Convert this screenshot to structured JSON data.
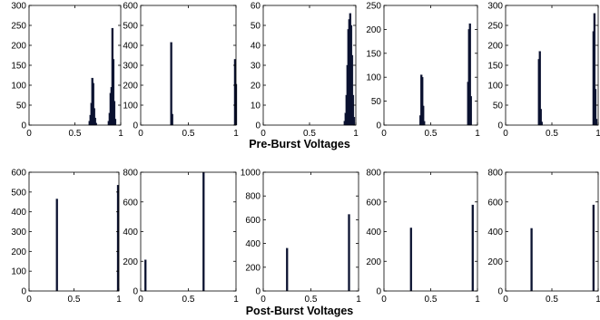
{
  "figure": {
    "row_titles": [
      "Pre-Burst Voltages",
      "Post-Burst Voltages"
    ]
  },
  "colors": {
    "bar": "#0b1230",
    "axis": "#000000",
    "background": "#ffffff"
  },
  "chart_data": [
    {
      "type": "bar",
      "panel": "pre-1",
      "row": "Pre-Burst Voltages",
      "xlim": [
        0,
        1
      ],
      "ylim": [
        0,
        300
      ],
      "xticks": [
        0,
        0.5,
        1
      ],
      "xtick_labels": [
        "0",
        "0.5",
        "1"
      ],
      "yticks": [
        0,
        50,
        100,
        150,
        200,
        250,
        300
      ],
      "ytick_labels": [
        "0",
        "50",
        "100",
        "150",
        "200",
        "250",
        "300"
      ],
      "bars": [
        {
          "x": 0.66,
          "y": 10
        },
        {
          "x": 0.67,
          "y": 25
        },
        {
          "x": 0.68,
          "y": 55
        },
        {
          "x": 0.69,
          "y": 118
        },
        {
          "x": 0.7,
          "y": 105
        },
        {
          "x": 0.71,
          "y": 42
        },
        {
          "x": 0.72,
          "y": 18
        },
        {
          "x": 0.73,
          "y": 5
        },
        {
          "x": 0.87,
          "y": 10
        },
        {
          "x": 0.88,
          "y": 30
        },
        {
          "x": 0.89,
          "y": 80
        },
        {
          "x": 0.9,
          "y": 95
        },
        {
          "x": 0.91,
          "y": 243
        },
        {
          "x": 0.92,
          "y": 165
        },
        {
          "x": 0.93,
          "y": 60
        },
        {
          "x": 0.94,
          "y": 15
        }
      ]
    },
    {
      "type": "bar",
      "panel": "pre-2",
      "row": "Pre-Burst Voltages",
      "xlim": [
        0,
        1
      ],
      "ylim": [
        0,
        600
      ],
      "xticks": [
        0,
        0.5,
        1
      ],
      "xtick_labels": [
        "0",
        "0.5",
        "1"
      ],
      "yticks": [
        0,
        100,
        200,
        300,
        400,
        500,
        600
      ],
      "ytick_labels": [
        "0",
        "100",
        "200",
        "300",
        "400",
        "500",
        "600"
      ],
      "bars": [
        {
          "x": 0.32,
          "y": 415
        },
        {
          "x": 0.33,
          "y": 55
        },
        {
          "x": 0.99,
          "y": 330
        },
        {
          "x": 1.0,
          "y": 205
        }
      ]
    },
    {
      "type": "bar",
      "panel": "pre-3",
      "row": "Pre-Burst Voltages",
      "xlim": [
        0,
        1
      ],
      "ylim": [
        0,
        60
      ],
      "xticks": [
        0,
        0.5,
        1
      ],
      "xtick_labels": [
        "0",
        "0.5",
        "1"
      ],
      "yticks": [
        0,
        10,
        20,
        30,
        40,
        50,
        60
      ],
      "ytick_labels": [
        "0",
        "10",
        "20",
        "30",
        "40",
        "50",
        "60"
      ],
      "bars": [
        {
          "x": 0.88,
          "y": 2
        },
        {
          "x": 0.89,
          "y": 6
        },
        {
          "x": 0.9,
          "y": 15
        },
        {
          "x": 0.91,
          "y": 30
        },
        {
          "x": 0.92,
          "y": 48
        },
        {
          "x": 0.93,
          "y": 53
        },
        {
          "x": 0.94,
          "y": 56
        },
        {
          "x": 0.95,
          "y": 50
        },
        {
          "x": 0.96,
          "y": 35
        },
        {
          "x": 0.97,
          "y": 15
        },
        {
          "x": 0.98,
          "y": 4
        }
      ]
    },
    {
      "type": "bar",
      "panel": "pre-4",
      "row": "Pre-Burst Voltages",
      "xlim": [
        0,
        1
      ],
      "ylim": [
        0,
        250
      ],
      "xticks": [
        0,
        0.5,
        1
      ],
      "xtick_labels": [
        "0",
        "0.5",
        "1"
      ],
      "yticks": [
        0,
        50,
        100,
        150,
        200,
        250
      ],
      "ytick_labels": [
        "0",
        "50",
        "100",
        "150",
        "200",
        "250"
      ],
      "bars": [
        {
          "x": 0.39,
          "y": 20
        },
        {
          "x": 0.4,
          "y": 105
        },
        {
          "x": 0.41,
          "y": 100
        },
        {
          "x": 0.42,
          "y": 40
        },
        {
          "x": 0.43,
          "y": 8
        },
        {
          "x": 0.9,
          "y": 90
        },
        {
          "x": 0.91,
          "y": 200
        },
        {
          "x": 0.92,
          "y": 212
        },
        {
          "x": 0.93,
          "y": 60
        }
      ]
    },
    {
      "type": "bar",
      "panel": "pre-5",
      "row": "Pre-Burst Voltages",
      "xlim": [
        0,
        1
      ],
      "ylim": [
        0,
        300
      ],
      "xticks": [
        0,
        0.5,
        1
      ],
      "xtick_labels": [
        "0",
        "0.5",
        "1"
      ],
      "yticks": [
        0,
        50,
        100,
        150,
        200,
        250,
        300
      ],
      "ytick_labels": [
        "0",
        "50",
        "100",
        "150",
        "200",
        "250",
        "300"
      ],
      "bars": [
        {
          "x": 0.36,
          "y": 165
        },
        {
          "x": 0.37,
          "y": 185
        },
        {
          "x": 0.38,
          "y": 40
        },
        {
          "x": 0.39,
          "y": 8
        },
        {
          "x": 0.95,
          "y": 235
        },
        {
          "x": 0.96,
          "y": 280
        },
        {
          "x": 0.97,
          "y": 90
        },
        {
          "x": 0.98,
          "y": 15
        }
      ]
    },
    {
      "type": "bar",
      "panel": "post-1",
      "row": "Post-Burst Voltages",
      "xlim": [
        0,
        1
      ],
      "ylim": [
        0,
        600
      ],
      "xticks": [
        0,
        0.5,
        1
      ],
      "xtick_labels": [
        "0",
        "0.5",
        "1"
      ],
      "yticks": [
        0,
        100,
        200,
        300,
        400,
        500,
        600
      ],
      "ytick_labels": [
        "0",
        "100",
        "200",
        "300",
        "400",
        "500",
        "600"
      ],
      "bars": [
        {
          "x": 0.31,
          "y": 465
        },
        {
          "x": 0.99,
          "y": 535
        }
      ]
    },
    {
      "type": "bar",
      "panel": "post-2",
      "row": "Post-Burst Voltages",
      "xlim": [
        0,
        1
      ],
      "ylim": [
        0,
        800
      ],
      "xticks": [
        0,
        0.5,
        1
      ],
      "xtick_labels": [
        "0",
        "0.5",
        "1"
      ],
      "yticks": [
        0,
        200,
        400,
        600,
        800
      ],
      "ytick_labels": [
        "0",
        "200",
        "400",
        "600",
        "800"
      ],
      "bars": [
        {
          "x": 0.05,
          "y": 210
        },
        {
          "x": 0.66,
          "y": 800
        }
      ]
    },
    {
      "type": "bar",
      "panel": "post-3",
      "row": "Post-Burst Voltages",
      "xlim": [
        0,
        1
      ],
      "ylim": [
        0,
        1000
      ],
      "xticks": [
        0,
        0.5,
        1
      ],
      "xtick_labels": [
        "0",
        "0.5",
        "1"
      ],
      "yticks": [
        0,
        200,
        400,
        600,
        800,
        1000
      ],
      "ytick_labels": [
        "0",
        "200",
        "400",
        "600",
        "800",
        "1000"
      ],
      "bars": [
        {
          "x": 0.25,
          "y": 360
        },
        {
          "x": 0.9,
          "y": 645
        }
      ]
    },
    {
      "type": "bar",
      "panel": "post-4",
      "row": "Post-Burst Voltages",
      "xlim": [
        0,
        1
      ],
      "ylim": [
        0,
        800
      ],
      "xticks": [
        0,
        0.5,
        1
      ],
      "xtick_labels": [
        "0",
        "0.5",
        "1"
      ],
      "yticks": [
        0,
        200,
        400,
        600,
        800
      ],
      "ytick_labels": [
        "0",
        "200",
        "400",
        "600",
        "800"
      ],
      "bars": [
        {
          "x": 0.29,
          "y": 425
        },
        {
          "x": 0.95,
          "y": 580
        }
      ]
    },
    {
      "type": "bar",
      "panel": "post-5",
      "row": "Post-Burst Voltages",
      "xlim": [
        0,
        1
      ],
      "ylim": [
        0,
        800
      ],
      "xticks": [
        0,
        0.5,
        1
      ],
      "xtick_labels": [
        "0",
        "0.5",
        "1"
      ],
      "yticks": [
        0,
        200,
        400,
        600,
        800
      ],
      "ytick_labels": [
        "0",
        "200",
        "400",
        "600",
        "800"
      ],
      "bars": [
        {
          "x": 0.28,
          "y": 422
        },
        {
          "x": 0.95,
          "y": 580
        }
      ]
    }
  ]
}
